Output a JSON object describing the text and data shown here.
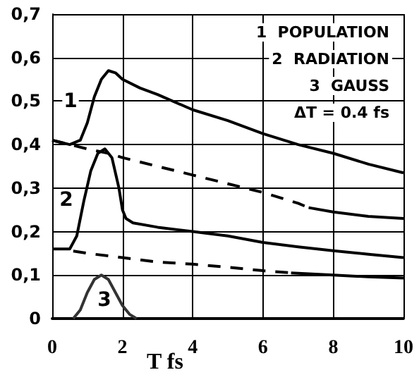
{
  "chart_data": {
    "type": "line",
    "xlabel": "T fs",
    "xlim": [
      0,
      10
    ],
    "xticks": [
      0,
      2,
      4,
      6,
      8,
      10
    ],
    "ylim": [
      0,
      0.7
    ],
    "yticks": [
      {
        "value": 0,
        "label": "0"
      },
      {
        "value": 0.1,
        "label": "0,1"
      },
      {
        "value": 0.2,
        "label": "0,2"
      },
      {
        "value": 0.3,
        "label": "0,3"
      },
      {
        "value": 0.4,
        "label": "0,4"
      },
      {
        "value": 0.5,
        "label": "0,5"
      },
      {
        "value": 0.6,
        "label": "0,6"
      },
      {
        "value": 0.7,
        "label": "0,7"
      }
    ],
    "grid": true,
    "marker": "none",
    "series": [
      {
        "color": "#000000",
        "line_style": "solid",
        "x": [
          0,
          0.5,
          0.8,
          1.0,
          1.2,
          1.4,
          1.6,
          1.8,
          2.0,
          2.5,
          3,
          4,
          5,
          6,
          7,
          8,
          9,
          10
        ],
        "values": [
          0.41,
          0.4,
          0.41,
          0.45,
          0.51,
          0.55,
          0.57,
          0.565,
          0.55,
          0.53,
          0.515,
          0.48,
          0.455,
          0.425,
          0.4,
          0.38,
          0.355,
          0.335
        ]
      },
      {
        "color": "#000000",
        "line_style": "dashed",
        "x": [
          0,
          1,
          1.6,
          2,
          3,
          4,
          5,
          6,
          7,
          7.3
        ],
        "values": [
          0.41,
          0.39,
          0.38,
          0.37,
          0.35,
          0.33,
          0.31,
          0.29,
          0.265,
          0.255
        ]
      },
      {
        "color": "#000000",
        "line_style": "solid",
        "x": [
          7.3,
          8,
          9,
          10
        ],
        "values": [
          0.255,
          0.245,
          0.235,
          0.23
        ]
      },
      {
        "color": "#000000",
        "line_style": "solid",
        "x": [
          0,
          0.5,
          0.7,
          0.9,
          1.1,
          1.3,
          1.5,
          1.7,
          1.9,
          2.0,
          2.1,
          2.3,
          3,
          4,
          5,
          6,
          7,
          8,
          9,
          10
        ],
        "values": [
          0.16,
          0.16,
          0.19,
          0.27,
          0.34,
          0.38,
          0.39,
          0.37,
          0.3,
          0.25,
          0.23,
          0.22,
          0.21,
          0.2,
          0.19,
          0.175,
          0.165,
          0.156,
          0.148,
          0.14
        ]
      },
      {
        "color": "#000000",
        "line_style": "dashed",
        "x": [
          0.6,
          1,
          2,
          3,
          4,
          5,
          6,
          6.8
        ],
        "values": [
          0.155,
          0.15,
          0.14,
          0.13,
          0.125,
          0.118,
          0.11,
          0.105
        ]
      },
      {
        "color": "#000000",
        "line_style": "solid",
        "x": [
          6.8,
          8,
          9,
          10
        ],
        "values": [
          0.105,
          0.1,
          0.096,
          0.093
        ]
      },
      {
        "color": "#333333",
        "line_style": "solid",
        "x": [
          0.6,
          0.8,
          1.0,
          1.2,
          1.4,
          1.6,
          1.8,
          2.0,
          2.2,
          2.4
        ],
        "values": [
          0,
          0.02,
          0.06,
          0.09,
          0.1,
          0.09,
          0.06,
          0.03,
          0.01,
          0
        ]
      }
    ],
    "annotations": [
      "1",
      "2",
      "3",
      "1  POPULATION",
      "2  RADIATION",
      "3  GAUSS",
      "ΔT = 0.4 fs"
    ]
  }
}
